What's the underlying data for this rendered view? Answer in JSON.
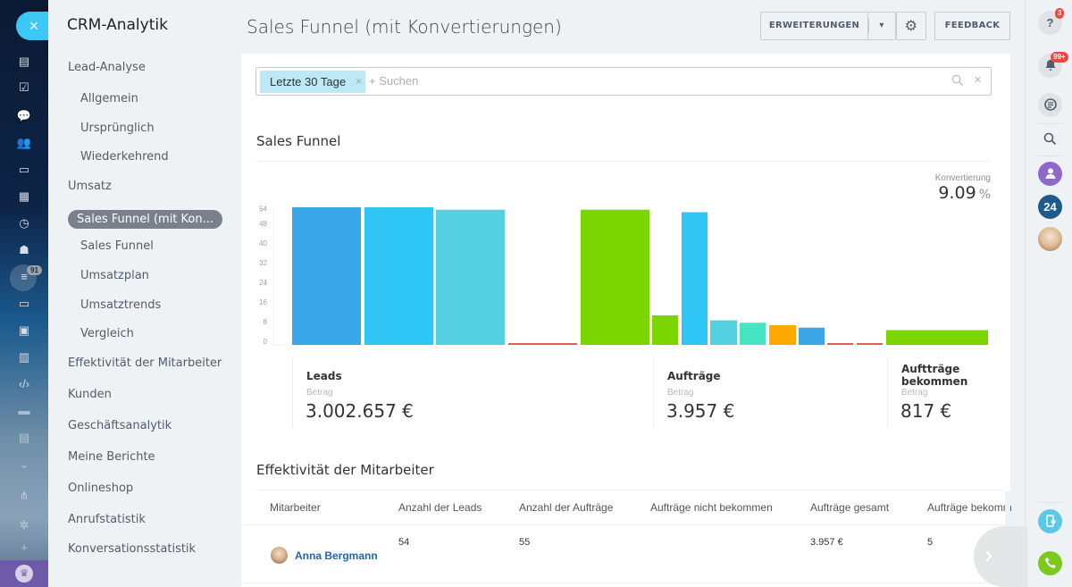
{
  "rail": {
    "close_label": "×",
    "icons": [
      "feed-icon",
      "tasks-icon",
      "chat-icon",
      "groups-icon",
      "drive-icon",
      "calendar-icon",
      "timeman-icon",
      "robot-icon",
      "crm-funnel-icon",
      "sites-icon",
      "contacts-icon",
      "knowledge-icon",
      "developer-icon",
      "video-icon",
      "documents-icon",
      "marketing-icon",
      "sitemap-icon",
      "settings-icon",
      "add-icon"
    ],
    "crm_badge": "91",
    "plan_icon": "crown-icon"
  },
  "menu": {
    "title": "CRM-Analytik",
    "items": [
      {
        "label": "Lead-Analyse",
        "level": 0
      },
      {
        "label": "Allgemein",
        "level": 1
      },
      {
        "label": "Ursprünglich",
        "level": 1
      },
      {
        "label": "Wiederkehrend",
        "level": 1
      },
      {
        "label": "Umsatz",
        "level": 0
      },
      {
        "label": "Sales Funnel (mit Kon...",
        "level": 1,
        "active": true
      },
      {
        "label": "Sales Funnel",
        "level": 1
      },
      {
        "label": "Umsatzplan",
        "level": 1
      },
      {
        "label": "Umsatztrends",
        "level": 1
      },
      {
        "label": "Vergleich",
        "level": 1
      },
      {
        "label": "Effektivität der Mitarbeiter",
        "level": 0
      },
      {
        "label": "Kunden",
        "level": 0
      },
      {
        "label": "Geschäftsanalytik",
        "level": 0
      },
      {
        "label": "Meine Berichte",
        "level": 0
      },
      {
        "label": "Onlineshop",
        "level": 0
      },
      {
        "label": "Anrufstatistik",
        "level": 0
      },
      {
        "label": "Konversationsstatistik",
        "level": 0
      }
    ]
  },
  "header": {
    "title": "Sales Funnel (mit Konvertierungen)",
    "extensions_label": "ERWEITERUNGEN",
    "dropdown_icon": "▾",
    "gear_icon": "⚙",
    "feedback_label": "FEEDBACK"
  },
  "right_rail": {
    "help_badge": "3",
    "notifications_badge": "99+",
    "b24_label": "24"
  },
  "filter": {
    "chip_label": "Letzte 30 Tage",
    "chip_remove": "×",
    "placeholder": "+ Suchen",
    "clear": "×"
  },
  "funnel": {
    "section_title": "Sales Funnel",
    "conversion_label": "Konvertierung",
    "conversion_value": "9.09",
    "conversion_unit": "%"
  },
  "chart_data": {
    "type": "bar",
    "title": "Sales Funnel",
    "xlabel": "",
    "ylabel": "",
    "ylim": [
      0,
      56
    ],
    "yticks": [
      0,
      8,
      16,
      24,
      32,
      40,
      48,
      54
    ],
    "grid": false,
    "groups": [
      {
        "name": "Leads",
        "bars": [
          {
            "value": 56,
            "color": "#3aa6e8"
          },
          {
            "value": 56,
            "color": "#2fc6f6"
          },
          {
            "value": 55,
            "color": "#55d0e0"
          },
          {
            "value": 0,
            "color": "#e25c5c"
          }
        ]
      },
      {
        "name": "Aufträge",
        "bars": [
          {
            "value": 55,
            "color": "#7bd500"
          },
          {
            "value": 12,
            "color": "#7bd500"
          },
          {
            "value": 54,
            "color": "#2fc6f6"
          },
          {
            "value": 10,
            "color": "#55d0e0"
          },
          {
            "value": 9,
            "color": "#47e4c2"
          },
          {
            "value": 8,
            "color": "#ffa900"
          },
          {
            "value": 7,
            "color": "#3aa6e8"
          },
          {
            "value": 0,
            "color": "#e25c5c"
          },
          {
            "value": 0,
            "color": "#e25c5c"
          }
        ]
      },
      {
        "name": "Auftträge bekommen",
        "bars": [
          {
            "value": 6,
            "color": "#7bd500"
          }
        ]
      }
    ]
  },
  "stats": [
    {
      "title": "Leads",
      "sub": "Betrag",
      "value": "3.002.657 €"
    },
    {
      "title": "Aufträge",
      "sub": "Betrag",
      "value": "3.957 €"
    },
    {
      "title": "Auftträge bekommen",
      "sub": "Betrag",
      "value": "817 €"
    }
  ],
  "employees": {
    "section_title": "Effektivität der Mitarbeiter",
    "columns": [
      "Mitarbeiter",
      "Anzahl der Leads",
      "Anzahl der Aufträge",
      "Aufträge nicht bekommen",
      "Aufträge gesamt",
      "Aufträge bekomm"
    ],
    "rows": [
      {
        "name": "Anna Bergmann",
        "leads": "54",
        "orders": "55",
        "not_won": "",
        "total": "3.957 €",
        "won": "5"
      }
    ],
    "next_icon": "›"
  }
}
